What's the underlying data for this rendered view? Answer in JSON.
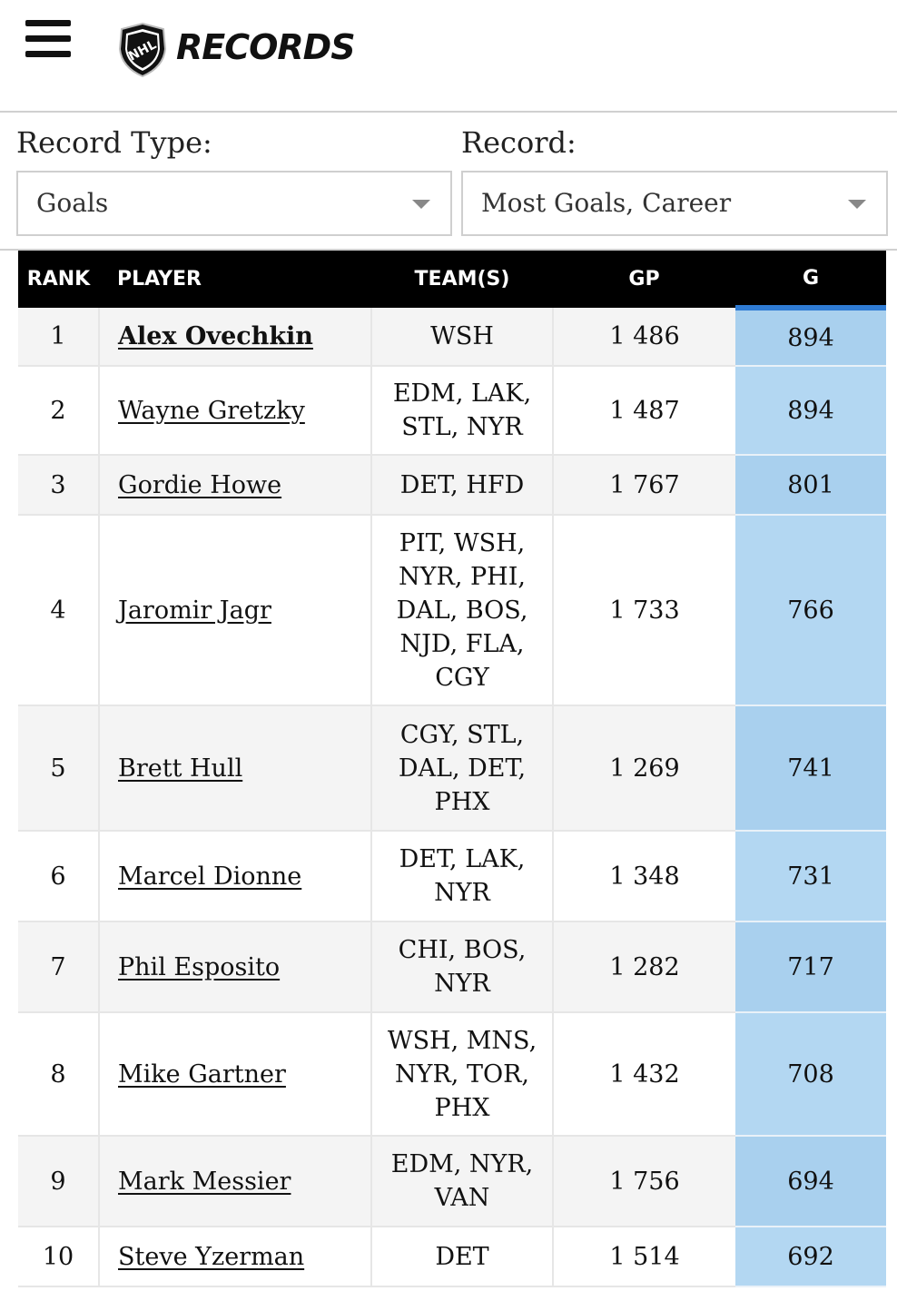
{
  "header": {
    "brand": "RECORDS",
    "logo_text": "NHL"
  },
  "filters": {
    "record_type_label": "Record Type:",
    "record_type_value": "Goals",
    "record_label": "Record:",
    "record_value": "Most Goals, Career"
  },
  "table": {
    "columns": [
      "RANK",
      "PLAYER",
      "TEAM(S)",
      "GP",
      "G"
    ],
    "rows": [
      {
        "rank": "1",
        "player": "Alex Ovechkin",
        "teams": "WSH",
        "gp": "1 486",
        "g": "894"
      },
      {
        "rank": "2",
        "player": "Wayne Gretzky",
        "teams": "EDM, LAK,\nSTL, NYR",
        "gp": "1 487",
        "g": "894"
      },
      {
        "rank": "3",
        "player": "Gordie Howe",
        "teams": "DET, HFD",
        "gp": "1 767",
        "g": "801"
      },
      {
        "rank": "4",
        "player": "Jaromir Jagr",
        "teams": "PIT, WSH,\nNYR, PHI,\nDAL, BOS,\nNJD, FLA,\nCGY",
        "gp": "1 733",
        "g": "766"
      },
      {
        "rank": "5",
        "player": "Brett Hull",
        "teams": "CGY, STL,\nDAL, DET,\nPHX",
        "gp": "1 269",
        "g": "741"
      },
      {
        "rank": "6",
        "player": "Marcel Dionne",
        "teams": "DET, LAK,\nNYR",
        "gp": "1 348",
        "g": "731"
      },
      {
        "rank": "7",
        "player": "Phil Esposito",
        "teams": "CHI, BOS,\nNYR",
        "gp": "1 282",
        "g": "717"
      },
      {
        "rank": "8",
        "player": "Mike Gartner",
        "teams": "WSH, MNS,\nNYR, TOR,\nPHX",
        "gp": "1 432",
        "g": "708"
      },
      {
        "rank": "9",
        "player": "Mark Messier",
        "teams": "EDM, NYR,\nVAN",
        "gp": "1 756",
        "g": "694"
      },
      {
        "rank": "10",
        "player": "Steve Yzerman",
        "teams": "DET",
        "gp": "1 514",
        "g": "692"
      }
    ]
  },
  "colors": {
    "header_bg": "#000000",
    "accent": "#2f7bd3",
    "g_col_bg": "#b3d7f2"
  }
}
